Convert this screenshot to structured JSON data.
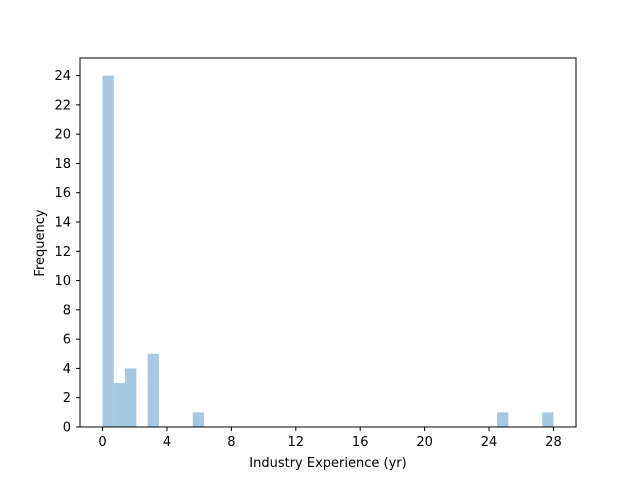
{
  "chart_data": {
    "type": "bar",
    "title": "",
    "xlabel": "Industry Experience (yr)",
    "ylabel": "Frequency",
    "bin_width": 0.7,
    "bins": [
      {
        "start": 0.0,
        "value": 24
      },
      {
        "start": 0.7,
        "value": 3
      },
      {
        "start": 1.4,
        "value": 4
      },
      {
        "start": 2.8,
        "value": 5
      },
      {
        "start": 5.6,
        "value": 1
      },
      {
        "start": 24.5,
        "value": 1
      },
      {
        "start": 27.3,
        "value": 1
      }
    ],
    "xlim": [
      -1.4,
      29.4
    ],
    "ylim": [
      0,
      25.2
    ],
    "x_ticks": [
      0,
      4,
      8,
      12,
      16,
      20,
      24,
      28
    ],
    "y_ticks": [
      0,
      2,
      4,
      6,
      8,
      10,
      12,
      14,
      16,
      18,
      20,
      22,
      24
    ],
    "grid": false,
    "bar_color": "#a6c8e0",
    "axis_color": "#000000"
  }
}
